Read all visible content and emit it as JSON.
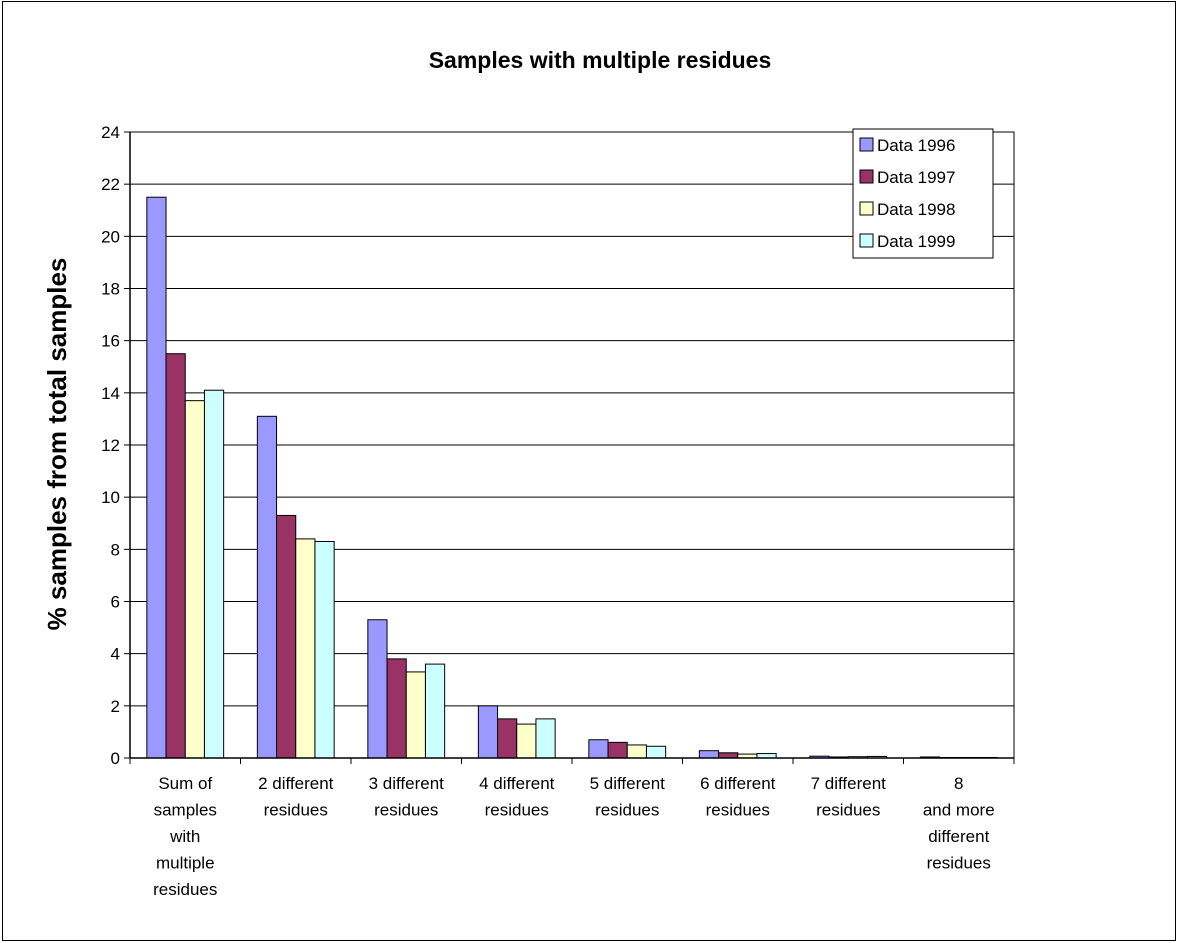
{
  "chart_data": {
    "type": "bar",
    "title": "Samples with multiple residues",
    "xlabel": "",
    "ylabel": "% samples from total samples",
    "ylim": [
      0,
      24
    ],
    "yticks": [
      "0",
      "2",
      "4",
      "6",
      "8",
      "10",
      "12",
      "14",
      "16",
      "18",
      "20",
      "22",
      "24"
    ],
    "grid": true,
    "legend_position": "top-right",
    "categories": [
      [
        "Sum of",
        "samples",
        "with",
        "multiple",
        "residues"
      ],
      [
        "2 different",
        "residues"
      ],
      [
        "3 different",
        "residues"
      ],
      [
        "4 different",
        "residues"
      ],
      [
        "5 different",
        "residues"
      ],
      [
        "6 different",
        "residues"
      ],
      [
        "7 different",
        "residues"
      ],
      [
        "8",
        "and more",
        "different",
        "residues"
      ]
    ],
    "series": [
      {
        "name": "Data 1996",
        "color": "#9999ff",
        "values": [
          21.5,
          13.1,
          5.3,
          2.0,
          0.7,
          0.28,
          0.07,
          0.04
        ]
      },
      {
        "name": "Data 1997",
        "color": "#993366",
        "values": [
          15.5,
          9.3,
          3.8,
          1.5,
          0.6,
          0.2,
          0.04,
          0.02
        ]
      },
      {
        "name": "Data 1998",
        "color": "#ffffcc",
        "values": [
          13.7,
          8.4,
          3.3,
          1.3,
          0.5,
          0.15,
          0.05,
          0.02
        ]
      },
      {
        "name": "Data 1999",
        "color": "#ccffff",
        "values": [
          14.1,
          8.3,
          3.6,
          1.5,
          0.45,
          0.17,
          0.06,
          0.02
        ]
      }
    ]
  }
}
